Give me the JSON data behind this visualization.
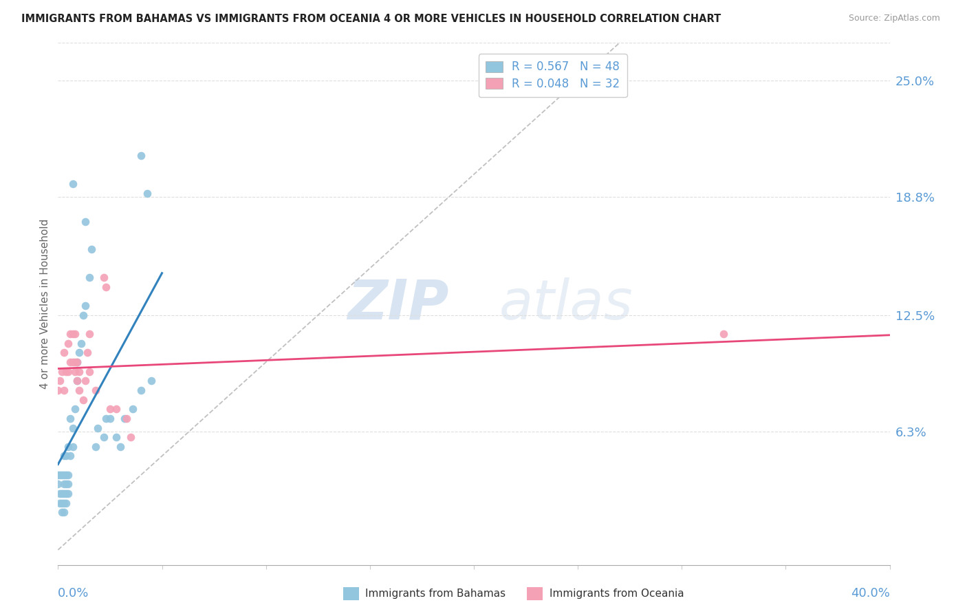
{
  "title": "IMMIGRANTS FROM BAHAMAS VS IMMIGRANTS FROM OCEANIA 4 OR MORE VEHICLES IN HOUSEHOLD CORRELATION CHART",
  "source": "Source: ZipAtlas.com",
  "ylabel": "4 or more Vehicles in Household",
  "ytick_labels": [
    "25.0%",
    "18.8%",
    "12.5%",
    "6.3%"
  ],
  "ytick_values": [
    0.25,
    0.188,
    0.125,
    0.063
  ],
  "xlim": [
    0.0,
    0.4
  ],
  "ylim": [
    -0.008,
    0.27
  ],
  "watermark_zip": "ZIP",
  "watermark_atlas": "atlas",
  "legend_1_label": "R = 0.567   N = 48",
  "legend_2_label": "R = 0.048   N = 32",
  "bahamas_color": "#92c5de",
  "oceania_color": "#f4a0b5",
  "regression_bahamas_color": "#3182bd",
  "regression_oceania_color": "#e8477a",
  "dashed_line_color": "#c0c0c0",
  "bahamas_scatter": {
    "x": [
      0.0,
      0.0,
      0.001,
      0.001,
      0.001,
      0.002,
      0.002,
      0.002,
      0.002,
      0.003,
      0.003,
      0.003,
      0.003,
      0.003,
      0.003,
      0.004,
      0.004,
      0.004,
      0.004,
      0.004,
      0.005,
      0.005,
      0.005,
      0.005,
      0.006,
      0.006,
      0.007,
      0.007,
      0.008,
      0.009,
      0.009,
      0.01,
      0.011,
      0.012,
      0.013,
      0.015,
      0.016,
      0.018,
      0.019,
      0.022,
      0.023,
      0.025,
      0.028,
      0.03,
      0.032,
      0.036,
      0.04,
      0.045
    ],
    "y": [
      0.035,
      0.04,
      0.025,
      0.03,
      0.04,
      0.02,
      0.025,
      0.03,
      0.04,
      0.02,
      0.025,
      0.03,
      0.035,
      0.04,
      0.05,
      0.025,
      0.03,
      0.035,
      0.04,
      0.05,
      0.03,
      0.035,
      0.04,
      0.055,
      0.05,
      0.07,
      0.055,
      0.065,
      0.075,
      0.09,
      0.1,
      0.105,
      0.11,
      0.125,
      0.13,
      0.145,
      0.16,
      0.055,
      0.065,
      0.06,
      0.07,
      0.07,
      0.06,
      0.055,
      0.07,
      0.075,
      0.085,
      0.09
    ]
  },
  "bahamas_outliers": {
    "x": [
      0.007,
      0.013,
      0.04,
      0.043
    ],
    "y": [
      0.195,
      0.175,
      0.21,
      0.19
    ]
  },
  "oceania_scatter": {
    "x": [
      0.0,
      0.001,
      0.002,
      0.003,
      0.003,
      0.004,
      0.005,
      0.005,
      0.006,
      0.006,
      0.007,
      0.007,
      0.008,
      0.008,
      0.008,
      0.009,
      0.009,
      0.01,
      0.01,
      0.012,
      0.013,
      0.014,
      0.015,
      0.015,
      0.018,
      0.022,
      0.023,
      0.025,
      0.028,
      0.033,
      0.035
    ],
    "y": [
      0.085,
      0.09,
      0.095,
      0.085,
      0.105,
      0.095,
      0.095,
      0.11,
      0.1,
      0.115,
      0.1,
      0.115,
      0.095,
      0.1,
      0.115,
      0.09,
      0.1,
      0.085,
      0.095,
      0.08,
      0.09,
      0.105,
      0.095,
      0.115,
      0.085,
      0.145,
      0.14,
      0.075,
      0.075,
      0.07,
      0.06
    ]
  },
  "oceania_outlier": {
    "x": [
      0.32
    ],
    "y": [
      0.115
    ]
  }
}
